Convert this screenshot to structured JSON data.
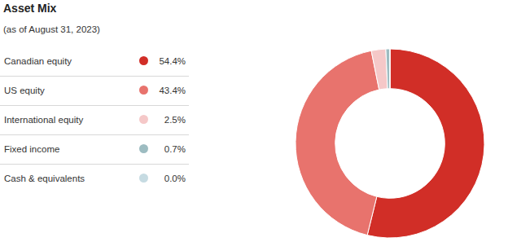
{
  "chart_data": {
    "type": "donut",
    "title": "Asset Mix",
    "subtitle": "(as of August 31, 2023)",
    "categories": [
      "Canadian equity",
      "US equity",
      "International equity",
      "Fixed income",
      "Cash & equivalents"
    ],
    "values": [
      54.4,
      43.4,
      2.5,
      0.7,
      0.0
    ],
    "value_labels": [
      "54.4%",
      "43.4%",
      "2.5%",
      "0.7%",
      "0.0%"
    ],
    "colors": [
      "#d12e27",
      "#e8736d",
      "#f5c8c8",
      "#9dbcc1",
      "#c6dbe2"
    ],
    "legend": "left"
  }
}
